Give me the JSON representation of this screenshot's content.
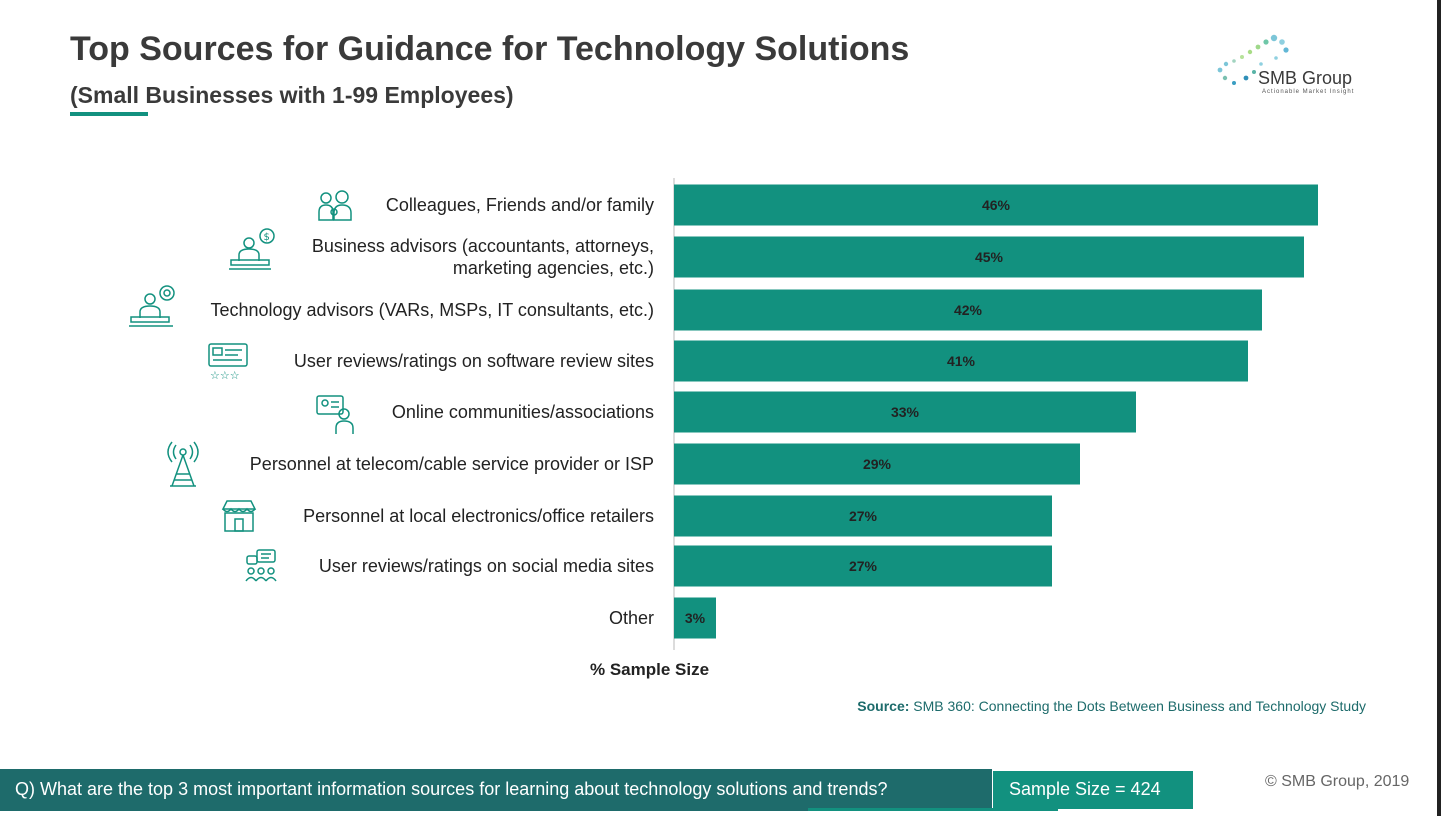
{
  "title": "Top Sources for Guidance for Technology Solutions",
  "subtitle": "(Small Businesses with 1-99 Employees)",
  "logo": {
    "name": "SMB Group",
    "tagline": "Actionable Market Insight"
  },
  "colors": {
    "bar": "#12917f",
    "dark_teal": "#1e6b6b",
    "text": "#222222"
  },
  "chart_data": {
    "type": "bar",
    "orientation": "horizontal",
    "categories": [
      [
        "Colleagues, Friends and/or family"
      ],
      [
        "Business advisors (accountants, attorneys,",
        "marketing agencies, etc.)"
      ],
      [
        "Technology advisors (VARs, MSPs, IT consultants, etc.)"
      ],
      [
        "User reviews/ratings on software review sites"
      ],
      [
        "Online communities/associations"
      ],
      [
        "Personnel at telecom/cable service provider or ISP"
      ],
      [
        "Personnel at local electronics/office retailers"
      ],
      [
        "User reviews/ratings on social media sites"
      ],
      [
        "Other"
      ]
    ],
    "values": [
      46,
      45,
      42,
      41,
      33,
      29,
      27,
      27,
      3
    ],
    "data_labels": [
      "46%",
      "45%",
      "42%",
      "41%",
      "33%",
      "29%",
      "27%",
      "27%",
      "3%"
    ],
    "icons": [
      "family-icon",
      "business-advisor-icon",
      "tech-advisor-icon",
      "review-sites-icon",
      "online-community-icon",
      "telecom-tower-icon",
      "retail-store-icon",
      "social-media-icon",
      ""
    ],
    "xlabel": "% Sample Size",
    "xlim": [
      0,
      50
    ]
  },
  "source": {
    "label": "Source:",
    "text": "SMB 360: Connecting the Dots Between Business and Technology Study"
  },
  "footer": {
    "question": "Q) What are the top 3 most important information sources for learning about technology solutions and trends?",
    "sample_size": "Sample Size = 424",
    "copyright": "© SMB Group, 2019"
  }
}
